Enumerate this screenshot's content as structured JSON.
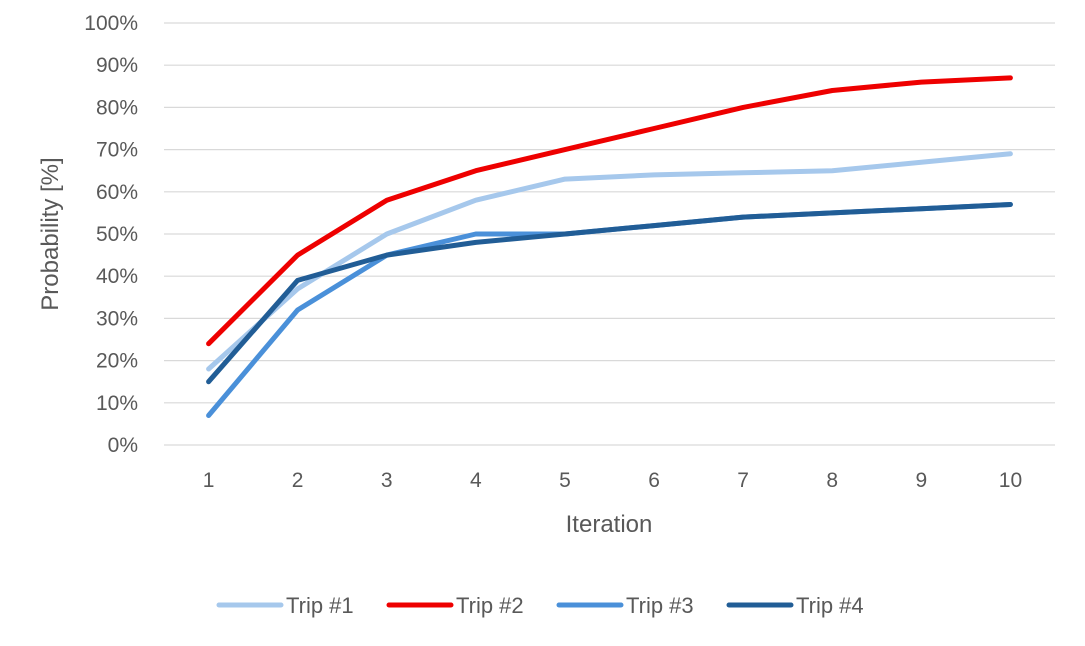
{
  "chart_data": {
    "type": "line",
    "xlabel": "Iteration",
    "ylabel": "Probability [%]",
    "categories": [
      "1",
      "2",
      "3",
      "4",
      "5",
      "6",
      "7",
      "8",
      "9",
      "10"
    ],
    "ylim": [
      0,
      100
    ],
    "y_ticks": [
      0,
      10,
      20,
      30,
      40,
      50,
      60,
      70,
      80,
      90,
      100
    ],
    "y_tick_labels": [
      "0%",
      "10%",
      "20%",
      "30%",
      "40%",
      "50%",
      "60%",
      "70%",
      "80%",
      "90%",
      "100%"
    ],
    "grid": true,
    "legend_position": "bottom",
    "series": [
      {
        "name": "Trip #1",
        "color": "#a6c8ec",
        "values": [
          18,
          37,
          50,
          58,
          63,
          64,
          64.5,
          65,
          67,
          69
        ]
      },
      {
        "name": "Trip #2",
        "color": "#ee0000",
        "values": [
          24,
          45,
          58,
          65,
          70,
          75,
          80,
          84,
          86,
          87
        ]
      },
      {
        "name": "Trip #3",
        "color": "#4a90d9",
        "values": [
          7,
          32,
          45,
          50,
          50,
          52,
          54,
          55,
          56,
          57
        ]
      },
      {
        "name": "Trip #4",
        "color": "#215d96",
        "values": [
          15,
          39,
          45,
          48,
          50,
          52,
          54,
          55,
          56,
          57
        ]
      }
    ]
  }
}
